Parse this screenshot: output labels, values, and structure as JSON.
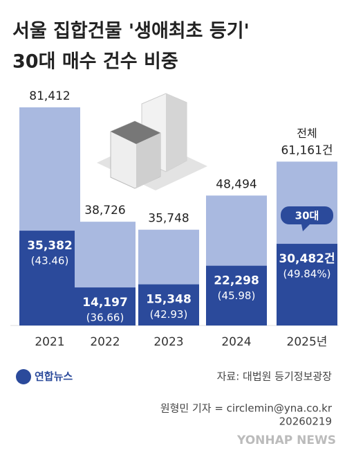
{
  "chart_data": {
    "type": "overlap_bar",
    "title_lines": [
      "서울 집합건물 '생애최초 등기'",
      "30대 매수 건수 비중"
    ],
    "categories": [
      "2021",
      "2022",
      "2023",
      "2024",
      "2025년"
    ],
    "series": [
      {
        "name": "전체",
        "color": "#a9b9e0",
        "values": [
          81412,
          38726,
          35748,
          48494,
          61161
        ],
        "value_labels": [
          "81,412",
          "38,726",
          "35,748",
          "48,494",
          "61,161건"
        ]
      },
      {
        "name": "30대",
        "color": "#2b4a9b",
        "values": [
          35382,
          14197,
          15348,
          22298,
          30482
        ],
        "value_labels": [
          "35,382",
          "14,197",
          "15,348",
          "22,298",
          "30,482건"
        ],
        "shares": [
          43.46,
          36.66,
          42.93,
          45.98,
          49.84
        ],
        "share_labels": [
          "(43.46)",
          "(36.66)",
          "(42.93)",
          "(45.98)",
          "(49.84%)"
        ]
      }
    ],
    "source": "자료: 대법원 등기정보광장",
    "logo": "연합뉴스",
    "credit": "원형민 기자 = circlemin@yna.co.kr",
    "date": "20260219",
    "watermark": "YONHAP NEWS"
  }
}
